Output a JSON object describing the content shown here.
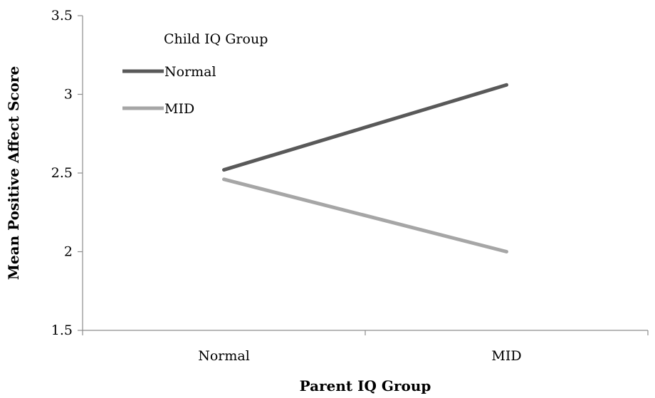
{
  "chart_data": {
    "type": "line",
    "title": "",
    "xlabel": "Parent IQ Group",
    "ylabel": "Mean Positive Affect Score",
    "categories": [
      "Normal",
      "MID"
    ],
    "ylim": [
      1.5,
      3.5
    ],
    "yticks": [
      "1.5",
      "2",
      "2.5",
      "3",
      "3.5"
    ],
    "ytick_values": [
      1.5,
      2,
      2.5,
      3,
      3.5
    ],
    "grid": false,
    "legend": {
      "title": "Child IQ Group",
      "placement": "top-left"
    },
    "series": [
      {
        "name": "Normal",
        "values": [
          2.52,
          3.06
        ],
        "color": "#595959"
      },
      {
        "name": "MID",
        "values": [
          2.46,
          2.0
        ],
        "color": "#a6a6a6"
      }
    ]
  }
}
